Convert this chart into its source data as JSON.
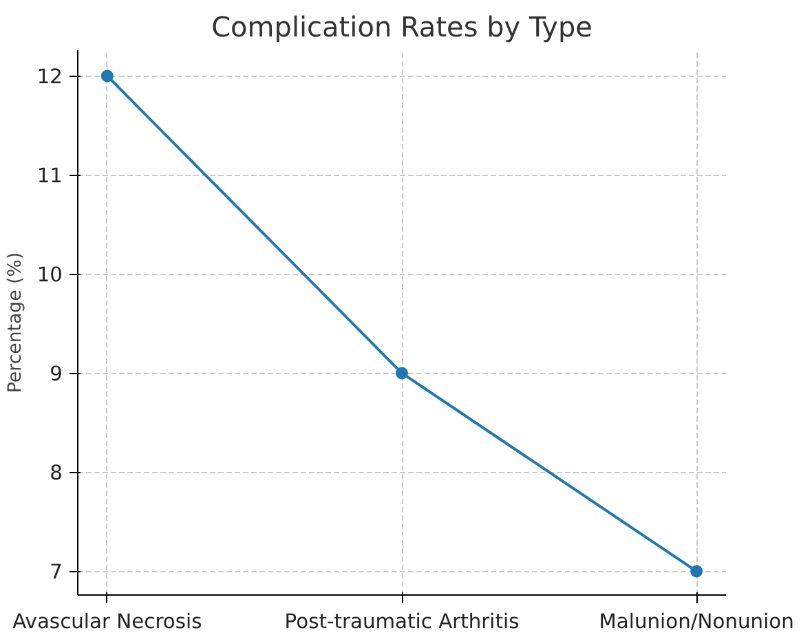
{
  "chart_data": {
    "type": "line",
    "title": "Complication Rates by Type",
    "ylabel": "Percentage (%)",
    "categories": [
      "Avascular Necrosis",
      "Post-traumatic Arthritis",
      "Malunion/Nonunion"
    ],
    "series": [
      {
        "color": "#1f77b4",
        "values": [
          12,
          9,
          7
        ]
      }
    ],
    "ylim": [
      6.76,
      12.26
    ],
    "yticks": [
      7,
      8,
      9,
      10,
      11,
      12
    ],
    "grid": true,
    "marker": "circle",
    "line_style": "solid"
  }
}
